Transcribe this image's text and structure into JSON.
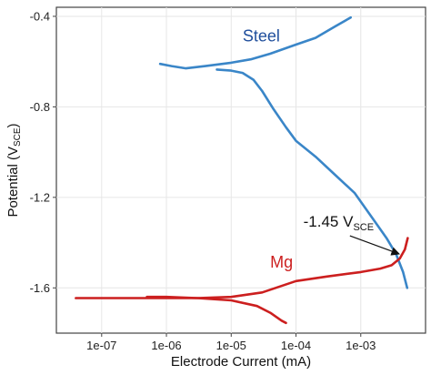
{
  "chart_data": {
    "type": "line",
    "xlabel": "Electrode Current (mA)",
    "ylabel_main": "Potential (V",
    "ylabel_sub": "SCE",
    "ylabel_end": ")",
    "x_scale": "log",
    "xlim": [
      2e-08,
      0.01
    ],
    "ylim": [
      -1.8,
      -0.36
    ],
    "x_ticks": [
      {
        "value": 1e-07,
        "label": "1e-07"
      },
      {
        "value": 1e-06,
        "label": "1e-06"
      },
      {
        "value": 1e-05,
        "label": "1e-05"
      },
      {
        "value": 0.0001,
        "label": "1e-04"
      },
      {
        "value": 0.001,
        "label": "1e-03"
      }
    ],
    "y_ticks": [
      {
        "value": -0.4,
        "label": "-0.4"
      },
      {
        "value": -0.8,
        "label": "-0.8"
      },
      {
        "value": -1.2,
        "label": "-1.2"
      },
      {
        "value": -1.6,
        "label": "-1.6"
      }
    ],
    "grid": true,
    "series": [
      {
        "name": "Steel",
        "color": "#3a86c8",
        "segments": [
          [
            [
              8e-07,
              -0.61
            ],
            [
              1.2e-06,
              -0.62
            ],
            [
              2e-06,
              -0.63
            ],
            [
              4e-06,
              -0.62
            ],
            [
              1e-05,
              -0.605
            ],
            [
              2e-05,
              -0.59
            ],
            [
              4e-05,
              -0.565
            ],
            [
              0.0001,
              -0.525
            ],
            [
              0.0002,
              -0.495
            ],
            [
              0.0004,
              -0.445
            ],
            [
              0.0007,
              -0.405
            ]
          ],
          [
            [
              6e-06,
              -0.635
            ],
            [
              1e-05,
              -0.64
            ],
            [
              1.5e-05,
              -0.65
            ],
            [
              2.2e-05,
              -0.68
            ],
            [
              3e-05,
              -0.73
            ],
            [
              4.5e-05,
              -0.81
            ],
            [
              7e-05,
              -0.89
            ],
            [
              0.0001,
              -0.95
            ],
            [
              0.0002,
              -1.02
            ],
            [
              0.0004,
              -1.1
            ],
            [
              0.0008,
              -1.18
            ],
            [
              0.0015,
              -1.29
            ],
            [
              0.0025,
              -1.38
            ],
            [
              0.0035,
              -1.45
            ],
            [
              0.0045,
              -1.53
            ],
            [
              0.0052,
              -1.6
            ]
          ]
        ]
      },
      {
        "name": "Mg",
        "color": "#cc1f1f",
        "segments": [
          [
            [
              4e-08,
              -1.645
            ],
            [
              1e-06,
              -1.645
            ],
            [
              3e-06,
              -1.645
            ],
            [
              1e-05,
              -1.64
            ],
            [
              3e-05,
              -1.62
            ],
            [
              0.0001,
              -1.57
            ],
            [
              0.0003,
              -1.55
            ],
            [
              0.001,
              -1.53
            ],
            [
              0.002,
              -1.515
            ],
            [
              0.003,
              -1.5
            ],
            [
              0.004,
              -1.47
            ],
            [
              0.0048,
              -1.43
            ],
            [
              0.0053,
              -1.38
            ]
          ],
          [
            [
              5e-07,
              -1.64
            ],
            [
              1e-06,
              -1.64
            ],
            [
              3e-06,
              -1.645
            ],
            [
              1e-05,
              -1.655
            ],
            [
              2.5e-05,
              -1.68
            ],
            [
              4e-05,
              -1.71
            ],
            [
              6e-05,
              -1.745
            ],
            [
              7e-05,
              -1.755
            ]
          ]
        ]
      }
    ],
    "annotations": [
      {
        "id": "steel",
        "text": "Steel",
        "x": 1.5e-05,
        "y": -0.51,
        "color": "#1f4e9c",
        "size": 18
      },
      {
        "id": "mg",
        "text": "Mg",
        "x": 4e-05,
        "y": -1.51,
        "color": "#cc1f1f",
        "size": 18
      }
    ],
    "callout": {
      "text_main": "-1.45 V",
      "text_sub": "SCE",
      "label_x": 0.00013,
      "label_y": -1.33,
      "line_from": [
        0.00068,
        -1.37
      ],
      "arrow_to": [
        0.0039,
        -1.45
      ],
      "color": "#111111"
    }
  }
}
